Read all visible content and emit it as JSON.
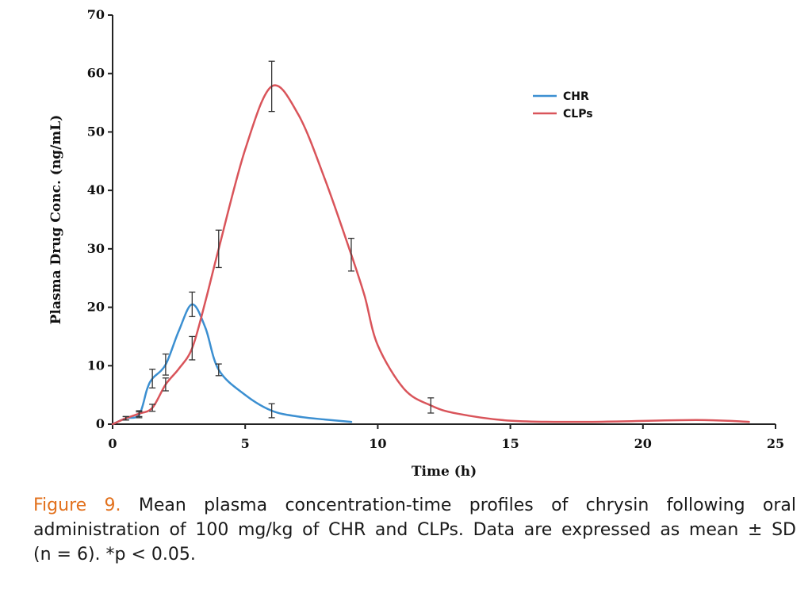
{
  "chart_data": {
    "type": "line",
    "xlabel": "Time (h)",
    "ylabel": "Plasma Drug Conc. (ng/mL)",
    "xlim": [
      0,
      25
    ],
    "ylim": [
      0,
      70
    ],
    "xticks": [
      0,
      5,
      10,
      15,
      20,
      25
    ],
    "yticks": [
      0,
      10,
      20,
      30,
      40,
      50,
      60,
      70
    ],
    "grid": false,
    "legend_position": "top-right",
    "series": [
      {
        "name": "CHR",
        "color": "#3b8fd1",
        "x": [
          0,
          0.5,
          1,
          1.5,
          2,
          3,
          4,
          6,
          9
        ],
        "y": [
          0,
          1.0,
          1.6,
          7.8,
          10.2,
          20.5,
          9.3,
          2.3,
          0.4
        ],
        "error": [
          0,
          0.3,
          0.5,
          1.6,
          1.8,
          2.1,
          1.0,
          1.2,
          0
        ],
        "curve_x": [
          0,
          0.5,
          1,
          1.3,
          1.5,
          2,
          2.5,
          3,
          3.5,
          4,
          5,
          6,
          7,
          8,
          9
        ],
        "curve_y": [
          0,
          1.0,
          1.6,
          6.0,
          7.8,
          10.2,
          16.0,
          20.5,
          16.5,
          9.3,
          5.0,
          2.3,
          1.3,
          0.8,
          0.4
        ]
      },
      {
        "name": "CLPs",
        "color": "#d9545a",
        "x": [
          0,
          0.5,
          1,
          1.5,
          2,
          3,
          4,
          6,
          9,
          12,
          24
        ],
        "y": [
          0,
          1.0,
          1.8,
          2.8,
          6.8,
          13.0,
          30.0,
          57.8,
          29.0,
          3.2,
          0.4
        ],
        "error": [
          0,
          0.3,
          0.5,
          0.6,
          1.1,
          2.0,
          3.2,
          4.3,
          2.8,
          1.3,
          0
        ],
        "curve_x": [
          0,
          0.5,
          1,
          1.5,
          2,
          2.5,
          3,
          3.5,
          4,
          5,
          6,
          7,
          8,
          9,
          9.5,
          10,
          11,
          12,
          13,
          15,
          18,
          22,
          24
        ],
        "curve_y": [
          0,
          1.0,
          1.8,
          2.8,
          6.8,
          9.5,
          13.0,
          21.0,
          30.0,
          47.0,
          57.8,
          53.0,
          42.0,
          29.0,
          22.0,
          13.5,
          6.0,
          3.2,
          1.8,
          0.6,
          0.4,
          0.7,
          0.4
        ]
      }
    ]
  },
  "caption": {
    "label": "Figure 9.",
    "text": " Mean plasma concentration-time profiles of chrysin following oral administration of 100 mg/kg of CHR and CLPs. Data are expressed as mean ± SD (n = 6). *p < 0.05."
  }
}
